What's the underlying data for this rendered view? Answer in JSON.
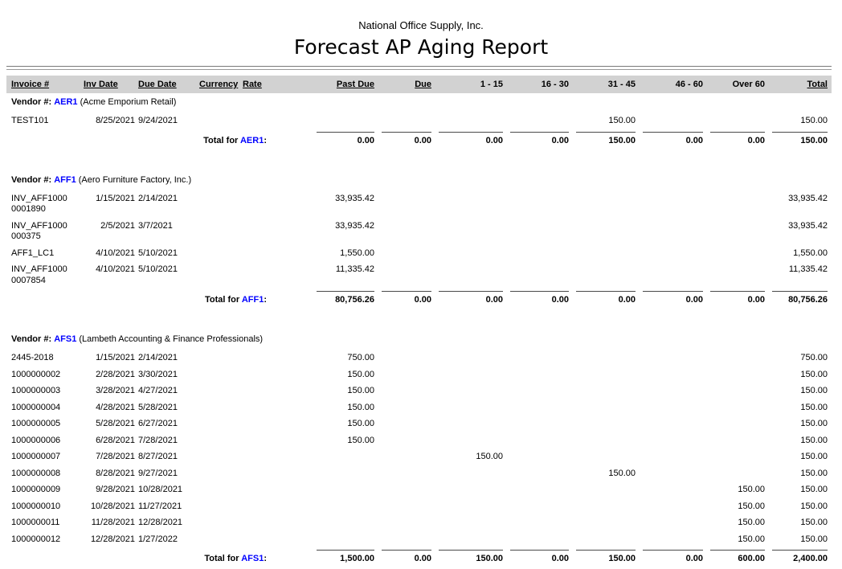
{
  "report": {
    "company": "National Office Supply, Inc.",
    "title": "Forecast AP Aging Report"
  },
  "labels": {
    "vendor": "Vendor #:",
    "total_for": "Total for",
    "colon": ":"
  },
  "table": {
    "columns": [
      "Invoice #",
      "Inv Date",
      "Due Date",
      "Currency",
      "Rate",
      "Past Due",
      "Due",
      "1 - 15",
      "16 - 30",
      "31 - 45",
      "46 - 60",
      "Over 60",
      "Total"
    ]
  },
  "vendors": [
    {
      "code": "AER1",
      "name": "(Acme Emporium Retail)",
      "rows": [
        {
          "invoice": "TEST101",
          "inv_date": "8/25/2021",
          "due_date": "9/24/2021",
          "b31_45": "150.00",
          "total": "150.00"
        }
      ],
      "totals": {
        "past_due": "0.00",
        "due": "0.00",
        "b1_15": "0.00",
        "b16_30": "0.00",
        "b31_45": "150.00",
        "b46_60": "0.00",
        "over_60": "0.00",
        "total": "150.00"
      }
    },
    {
      "code": "AFF1",
      "name": "(Aero Furniture Factory, Inc.)",
      "rows": [
        {
          "invoice": "INV_AFF1000\n0001890",
          "inv_date": "1/15/2021",
          "due_date": "2/14/2021",
          "past_due": "33,935.42",
          "total": "33,935.42"
        },
        {
          "invoice": "INV_AFF1000\n000375",
          "inv_date": "2/5/2021",
          "due_date": "3/7/2021",
          "past_due": "33,935.42",
          "total": "33,935.42"
        },
        {
          "invoice": "AFF1_LC1",
          "inv_date": "4/10/2021",
          "due_date": "5/10/2021",
          "past_due": "1,550.00",
          "total": "1,550.00"
        },
        {
          "invoice": "INV_AFF1000\n0007854",
          "inv_date": "4/10/2021",
          "due_date": "5/10/2021",
          "past_due": "11,335.42",
          "total": "11,335.42"
        }
      ],
      "totals": {
        "past_due": "80,756.26",
        "due": "0.00",
        "b1_15": "0.00",
        "b16_30": "0.00",
        "b31_45": "0.00",
        "b46_60": "0.00",
        "over_60": "0.00",
        "total": "80,756.26"
      }
    },
    {
      "code": "AFS1",
      "name": "(Lambeth Accounting & Finance Professionals)",
      "rows": [
        {
          "invoice": "2445-2018",
          "inv_date": "1/15/2021",
          "due_date": "2/14/2021",
          "past_due": "750.00",
          "total": "750.00"
        },
        {
          "invoice": "1000000002",
          "inv_date": "2/28/2021",
          "due_date": "3/30/2021",
          "past_due": "150.00",
          "total": "150.00"
        },
        {
          "invoice": "1000000003",
          "inv_date": "3/28/2021",
          "due_date": "4/27/2021",
          "past_due": "150.00",
          "total": "150.00"
        },
        {
          "invoice": "1000000004",
          "inv_date": "4/28/2021",
          "due_date": "5/28/2021",
          "past_due": "150.00",
          "total": "150.00"
        },
        {
          "invoice": "1000000005",
          "inv_date": "5/28/2021",
          "due_date": "6/27/2021",
          "past_due": "150.00",
          "total": "150.00"
        },
        {
          "invoice": "1000000006",
          "inv_date": "6/28/2021",
          "due_date": "7/28/2021",
          "past_due": "150.00",
          "total": "150.00"
        },
        {
          "invoice": "1000000007",
          "inv_date": "7/28/2021",
          "due_date": "8/27/2021",
          "b1_15": "150.00",
          "total": "150.00"
        },
        {
          "invoice": "1000000008",
          "inv_date": "8/28/2021",
          "due_date": "9/27/2021",
          "b31_45": "150.00",
          "total": "150.00"
        },
        {
          "invoice": "1000000009",
          "inv_date": "9/28/2021",
          "due_date": "10/28/2021",
          "over_60": "150.00",
          "total": "150.00"
        },
        {
          "invoice": "1000000010",
          "inv_date": "10/28/2021",
          "due_date": "11/27/2021",
          "over_60": "150.00",
          "total": "150.00"
        },
        {
          "invoice": "1000000011",
          "inv_date": "11/28/2021",
          "due_date": "12/28/2021",
          "over_60": "150.00",
          "total": "150.00"
        },
        {
          "invoice": "1000000012",
          "inv_date": "12/28/2021",
          "due_date": "1/27/2022",
          "over_60": "150.00",
          "total": "150.00"
        }
      ],
      "totals": {
        "past_due": "1,500.00",
        "due": "0.00",
        "b1_15": "150.00",
        "b16_30": "0.00",
        "b31_45": "150.00",
        "b46_60": "0.00",
        "over_60": "600.00",
        "total": "2,400.00"
      }
    }
  ],
  "colors": {
    "vendor_link": "#0000ff",
    "header_bar": "#d2d2d2"
  }
}
